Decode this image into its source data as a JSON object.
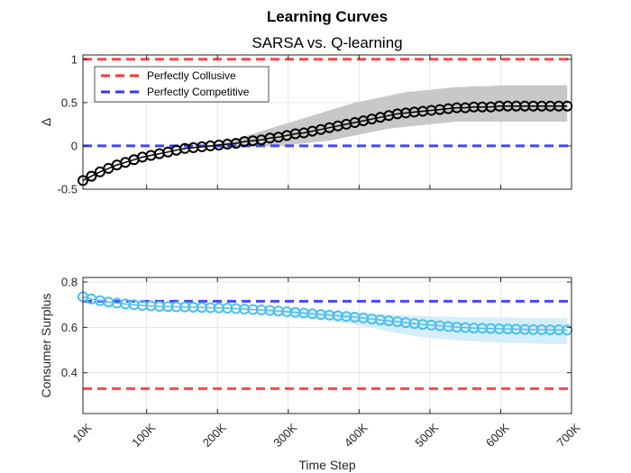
{
  "chart_data": {
    "title": "Learning Curves",
    "subtitle": "SARSA vs. Q-learning",
    "xlabel": "Time Step",
    "xlim": [
      10000,
      700000
    ],
    "xticks": [
      10000,
      100000,
      200000,
      300000,
      400000,
      500000,
      600000,
      700000
    ],
    "xticklabels": [
      "10K",
      "100K",
      "200K",
      "300K",
      "400K",
      "500K",
      "600K",
      "700K"
    ],
    "grid": true,
    "legend": {
      "placement": "top-left",
      "entries": [
        {
          "label": "Perfectly Collusive",
          "color": "#ff3333",
          "style": "dashed"
        },
        {
          "label": "Perfectly Competitive",
          "color": "#3333ff",
          "style": "dashed"
        }
      ]
    },
    "panels": [
      {
        "type": "line",
        "ylabel": "Δ",
        "ylim": [
          -0.5,
          1.05
        ],
        "yticks": [
          -0.5,
          0,
          0.5,
          1
        ],
        "yticklabels": [
          "-0.5",
          "0",
          "0.5",
          "1"
        ],
        "reference_lines": [
          {
            "name": "Perfectly Collusive",
            "y": 1,
            "color": "#ff3333"
          },
          {
            "name": "Perfectly Competitive",
            "y": 0,
            "color": "#3333ff"
          }
        ],
        "series_color": "#000000",
        "band_color": "#c8c8c8",
        "x_start": 10000,
        "x_step": 12000,
        "values": [
          -0.4,
          -0.35,
          -0.3,
          -0.26,
          -0.22,
          -0.19,
          -0.16,
          -0.13,
          -0.11,
          -0.09,
          -0.07,
          -0.05,
          -0.03,
          -0.02,
          -0.01,
          0.0,
          0.01,
          0.02,
          0.03,
          0.05,
          0.06,
          0.07,
          0.09,
          0.1,
          0.12,
          0.14,
          0.15,
          0.17,
          0.19,
          0.21,
          0.23,
          0.25,
          0.27,
          0.29,
          0.31,
          0.33,
          0.35,
          0.37,
          0.38,
          0.39,
          0.4,
          0.41,
          0.42,
          0.43,
          0.44,
          0.44,
          0.45,
          0.45,
          0.45,
          0.46,
          0.46,
          0.46,
          0.46,
          0.46,
          0.46,
          0.46,
          0.46,
          0.46
        ],
        "band_upper": [
          -0.4,
          -0.35,
          -0.3,
          -0.26,
          -0.22,
          -0.19,
          -0.16,
          -0.13,
          -0.11,
          -0.09,
          -0.07,
          -0.05,
          -0.03,
          -0.02,
          -0.01,
          0.01,
          0.03,
          0.05,
          0.08,
          0.11,
          0.14,
          0.17,
          0.2,
          0.23,
          0.26,
          0.29,
          0.32,
          0.35,
          0.38,
          0.41,
          0.44,
          0.47,
          0.5,
          0.52,
          0.54,
          0.56,
          0.58,
          0.6,
          0.62,
          0.63,
          0.64,
          0.65,
          0.66,
          0.67,
          0.68,
          0.68,
          0.69,
          0.69,
          0.69,
          0.7,
          0.7,
          0.7,
          0.7,
          0.7,
          0.7,
          0.7,
          0.7,
          0.7
        ],
        "band_lower": [
          -0.4,
          -0.35,
          -0.3,
          -0.26,
          -0.22,
          -0.19,
          -0.16,
          -0.13,
          -0.11,
          -0.09,
          -0.07,
          -0.05,
          -0.03,
          -0.02,
          -0.02,
          -0.02,
          -0.02,
          -0.02,
          -0.02,
          -0.02,
          -0.01,
          -0.01,
          0.0,
          0.0,
          0.01,
          0.02,
          0.03,
          0.04,
          0.05,
          0.06,
          0.08,
          0.1,
          0.12,
          0.14,
          0.16,
          0.18,
          0.2,
          0.21,
          0.22,
          0.23,
          0.24,
          0.25,
          0.26,
          0.27,
          0.28,
          0.28,
          0.28,
          0.28,
          0.28,
          0.28,
          0.28,
          0.28,
          0.28,
          0.28,
          0.28,
          0.28,
          0.28,
          0.28
        ]
      },
      {
        "type": "line",
        "ylabel": "Consumer Surplus",
        "ylim": [
          0.22,
          0.82
        ],
        "yticks": [
          0.4,
          0.6,
          0.8
        ],
        "yticklabels": [
          "0.4",
          "0.6",
          "0.8"
        ],
        "reference_lines": [
          {
            "name": "Perfectly Collusive",
            "y": 0.33,
            "color": "#ff3333"
          },
          {
            "name": "Perfectly Competitive",
            "y": 0.715,
            "color": "#3333ff"
          }
        ],
        "series_color": "#4dbeee",
        "band_color": "#d6eefa",
        "x_start": 10000,
        "x_step": 12000,
        "values": [
          0.735,
          0.725,
          0.718,
          0.712,
          0.707,
          0.703,
          0.7,
          0.697,
          0.695,
          0.693,
          0.692,
          0.691,
          0.69,
          0.689,
          0.688,
          0.687,
          0.686,
          0.685,
          0.683,
          0.681,
          0.679,
          0.677,
          0.675,
          0.672,
          0.669,
          0.666,
          0.663,
          0.66,
          0.657,
          0.654,
          0.651,
          0.648,
          0.645,
          0.641,
          0.637,
          0.633,
          0.629,
          0.625,
          0.621,
          0.617,
          0.613,
          0.61,
          0.607,
          0.604,
          0.601,
          0.599,
          0.597,
          0.596,
          0.595,
          0.594,
          0.593,
          0.592,
          0.591,
          0.59,
          0.59,
          0.589,
          0.589,
          0.588
        ],
        "band_upper": [
          0.735,
          0.725,
          0.718,
          0.712,
          0.707,
          0.703,
          0.7,
          0.697,
          0.695,
          0.693,
          0.692,
          0.691,
          0.69,
          0.689,
          0.688,
          0.687,
          0.686,
          0.685,
          0.684,
          0.683,
          0.682,
          0.681,
          0.68,
          0.679,
          0.678,
          0.677,
          0.676,
          0.675,
          0.673,
          0.671,
          0.669,
          0.667,
          0.665,
          0.663,
          0.661,
          0.659,
          0.657,
          0.655,
          0.653,
          0.651,
          0.65,
          0.649,
          0.648,
          0.647,
          0.646,
          0.645,
          0.645,
          0.644,
          0.644,
          0.643,
          0.643,
          0.642,
          0.642,
          0.641,
          0.641,
          0.641,
          0.64,
          0.64
        ],
        "band_lower": [
          0.735,
          0.725,
          0.718,
          0.712,
          0.707,
          0.703,
          0.7,
          0.697,
          0.695,
          0.693,
          0.692,
          0.691,
          0.69,
          0.689,
          0.688,
          0.686,
          0.684,
          0.682,
          0.679,
          0.676,
          0.673,
          0.669,
          0.665,
          0.661,
          0.656,
          0.651,
          0.646,
          0.641,
          0.636,
          0.63,
          0.624,
          0.618,
          0.612,
          0.605,
          0.598,
          0.59,
          0.582,
          0.575,
          0.568,
          0.562,
          0.557,
          0.553,
          0.55,
          0.547,
          0.544,
          0.541,
          0.539,
          0.537,
          0.535,
          0.533,
          0.532,
          0.531,
          0.53,
          0.529,
          0.528,
          0.527,
          0.526,
          0.525
        ]
      }
    ]
  }
}
